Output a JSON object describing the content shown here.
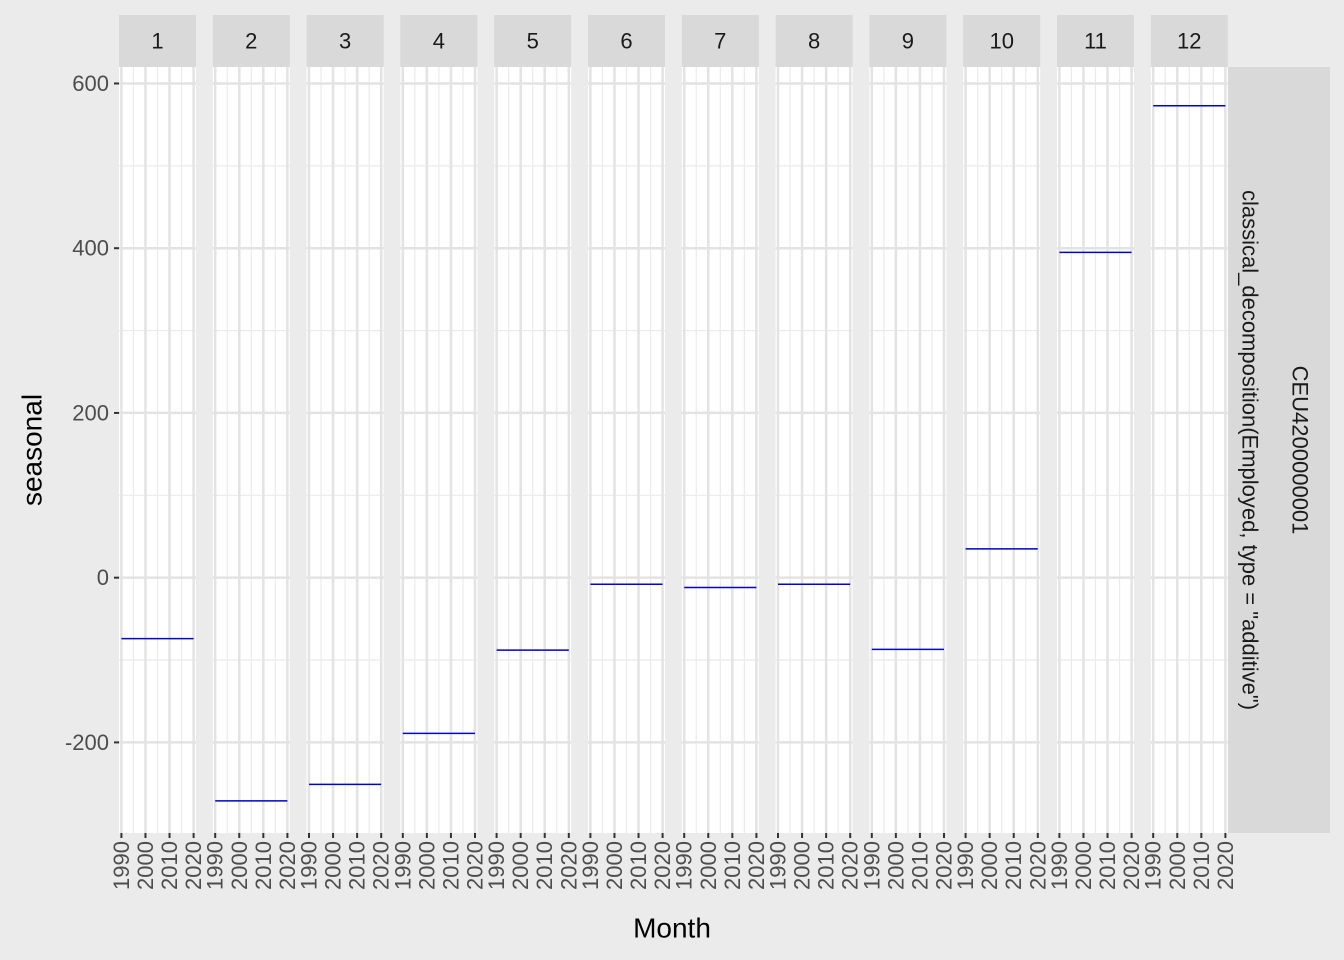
{
  "chart_data": {
    "type": "line",
    "facet_by": "month",
    "facets": [
      {
        "label": "1",
        "seasonal": -74
      },
      {
        "label": "2",
        "seasonal": -271
      },
      {
        "label": "3",
        "seasonal": -251
      },
      {
        "label": "4",
        "seasonal": -189
      },
      {
        "label": "5",
        "seasonal": -88
      },
      {
        "label": "6",
        "seasonal": -8
      },
      {
        "label": "7",
        "seasonal": -12
      },
      {
        "label": "8",
        "seasonal": -8
      },
      {
        "label": "9",
        "seasonal": -87
      },
      {
        "label": "10",
        "seasonal": 35
      },
      {
        "label": "11",
        "seasonal": 395
      },
      {
        "label": "12",
        "seasonal": 573
      }
    ],
    "row_strip_lines": [
      "CEU4200000001",
      "classical_decomposition(Employed, type = \"additive\")"
    ],
    "xlabel": "Month",
    "ylabel": "seasonal",
    "x_ticks": [
      "1990",
      "2000",
      "2010",
      "2020"
    ],
    "xlim": [
      1990,
      2020
    ],
    "y_ticks": [
      -200,
      0,
      200,
      400,
      600
    ],
    "ylim": [
      -310,
      620
    ],
    "grid": true,
    "line_color": "#0000cc",
    "panel_background": "#ffffff",
    "plot_background": "#ebebeb",
    "strip_background": "#d9d9d9"
  }
}
